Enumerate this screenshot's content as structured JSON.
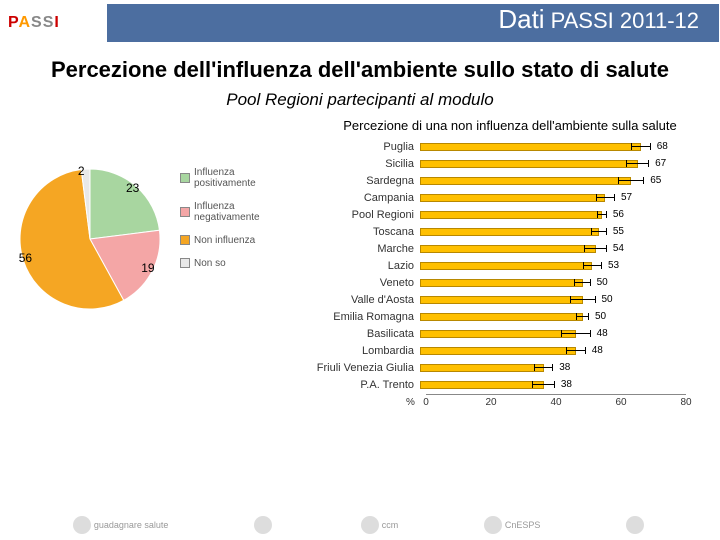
{
  "header": {
    "title_main": "Dati",
    "title_sub": "PASSI 2011-12",
    "logo_letters": [
      "P",
      "A",
      "S",
      "S",
      "I"
    ]
  },
  "slide": {
    "title": "Percezione dell'influenza dell'ambiente sullo stato di salute",
    "subtitle": "Pool Regioni partecipanti al modulo"
  },
  "pie": {
    "type": "pie",
    "slices": [
      {
        "label": "Influenza positivamente",
        "value": 23,
        "color": "#a8d6a0"
      },
      {
        "label": "Influenza negativamente",
        "value": 19,
        "color": "#f4a6a6"
      },
      {
        "label": "Non influenza",
        "value": 56,
        "color": "#f5a623"
      },
      {
        "label": "Non so",
        "value": 2,
        "color": "#e8e8e8"
      }
    ],
    "label_fontsize": 12,
    "legend_fontsize": 10
  },
  "bar": {
    "type": "bar",
    "title": "Percezione di una non influenza dell'ambiente sulla salute",
    "xlabel": "%",
    "xlim": [
      0,
      80
    ],
    "xtick_step": 20,
    "bar_color": "#ffc000",
    "bar_border": "#b88800",
    "grid_color": "#dddddd",
    "label_fontsize": 11,
    "value_fontsize": 10,
    "regions": [
      {
        "name": "Puglia",
        "value": 68,
        "err": 6
      },
      {
        "name": "Sicilia",
        "value": 67,
        "err": 7
      },
      {
        "name": "Sardegna",
        "value": 65,
        "err": 8
      },
      {
        "name": "Campania",
        "value": 57,
        "err": 6
      },
      {
        "name": "Pool Regioni",
        "value": 56,
        "err": 3
      },
      {
        "name": "Toscana",
        "value": 55,
        "err": 5
      },
      {
        "name": "Marche",
        "value": 54,
        "err": 7
      },
      {
        "name": "Lazio",
        "value": 53,
        "err": 6
      },
      {
        "name": "Veneto",
        "value": 50,
        "err": 5
      },
      {
        "name": "Valle d'Aosta",
        "value": 50,
        "err": 8
      },
      {
        "name": "Emilia Romagna",
        "value": 50,
        "err": 4
      },
      {
        "name": "Basilicata",
        "value": 48,
        "err": 9
      },
      {
        "name": "Lombardia",
        "value": 48,
        "err": 6
      },
      {
        "name": "Friuli Venezia Giulia",
        "value": 38,
        "err": 6
      },
      {
        "name": "P.A. Trento",
        "value": 38,
        "err": 7
      }
    ]
  },
  "footer": {
    "logos": [
      "guadagnare salute",
      "",
      "ccm",
      "CnESPS",
      ""
    ]
  }
}
